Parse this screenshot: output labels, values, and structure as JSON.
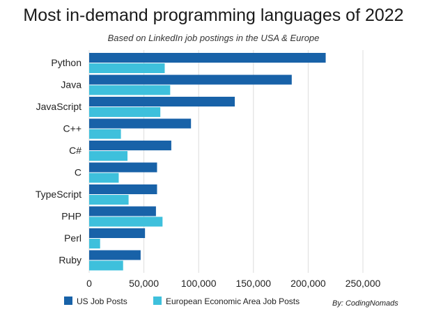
{
  "title": "Most in-demand programming languages of 2022",
  "subtitle": "Based on LinkedIn job postings in the USA & Europe",
  "credit": "By: CodingNomads",
  "colors": {
    "us": "#1862a8",
    "eu": "#3ec0dc",
    "grid": "#dcdcdc"
  },
  "chart_data": {
    "type": "bar",
    "orientation": "horizontal",
    "title": "Most in-demand programming languages of 2022",
    "subtitle": "Based on LinkedIn job postings in the USA & Europe",
    "categories": [
      "Python",
      "Java",
      "JavaScript",
      "C++",
      "C#",
      "C",
      "TypeScript",
      "PHP",
      "Perl",
      "Ruby"
    ],
    "series": [
      {
        "name": "US Job Posts",
        "color": "#1862a8",
        "values": [
          216000,
          185000,
          133000,
          93000,
          75000,
          62000,
          62000,
          61000,
          51000,
          47000
        ]
      },
      {
        "name": "European Economic Area Job Posts",
        "color": "#3ec0dc",
        "values": [
          69000,
          74000,
          65000,
          29000,
          35000,
          27000,
          36000,
          67000,
          10000,
          31000
        ]
      }
    ],
    "xlim": [
      0,
      250000
    ],
    "xticks": [
      0,
      50000,
      100000,
      150000,
      200000,
      250000
    ],
    "xtick_labels": [
      "0",
      "50,000",
      "100,000",
      "150,000",
      "200,000",
      "250,000"
    ],
    "grid": "vertical",
    "legend_position": "bottom"
  }
}
